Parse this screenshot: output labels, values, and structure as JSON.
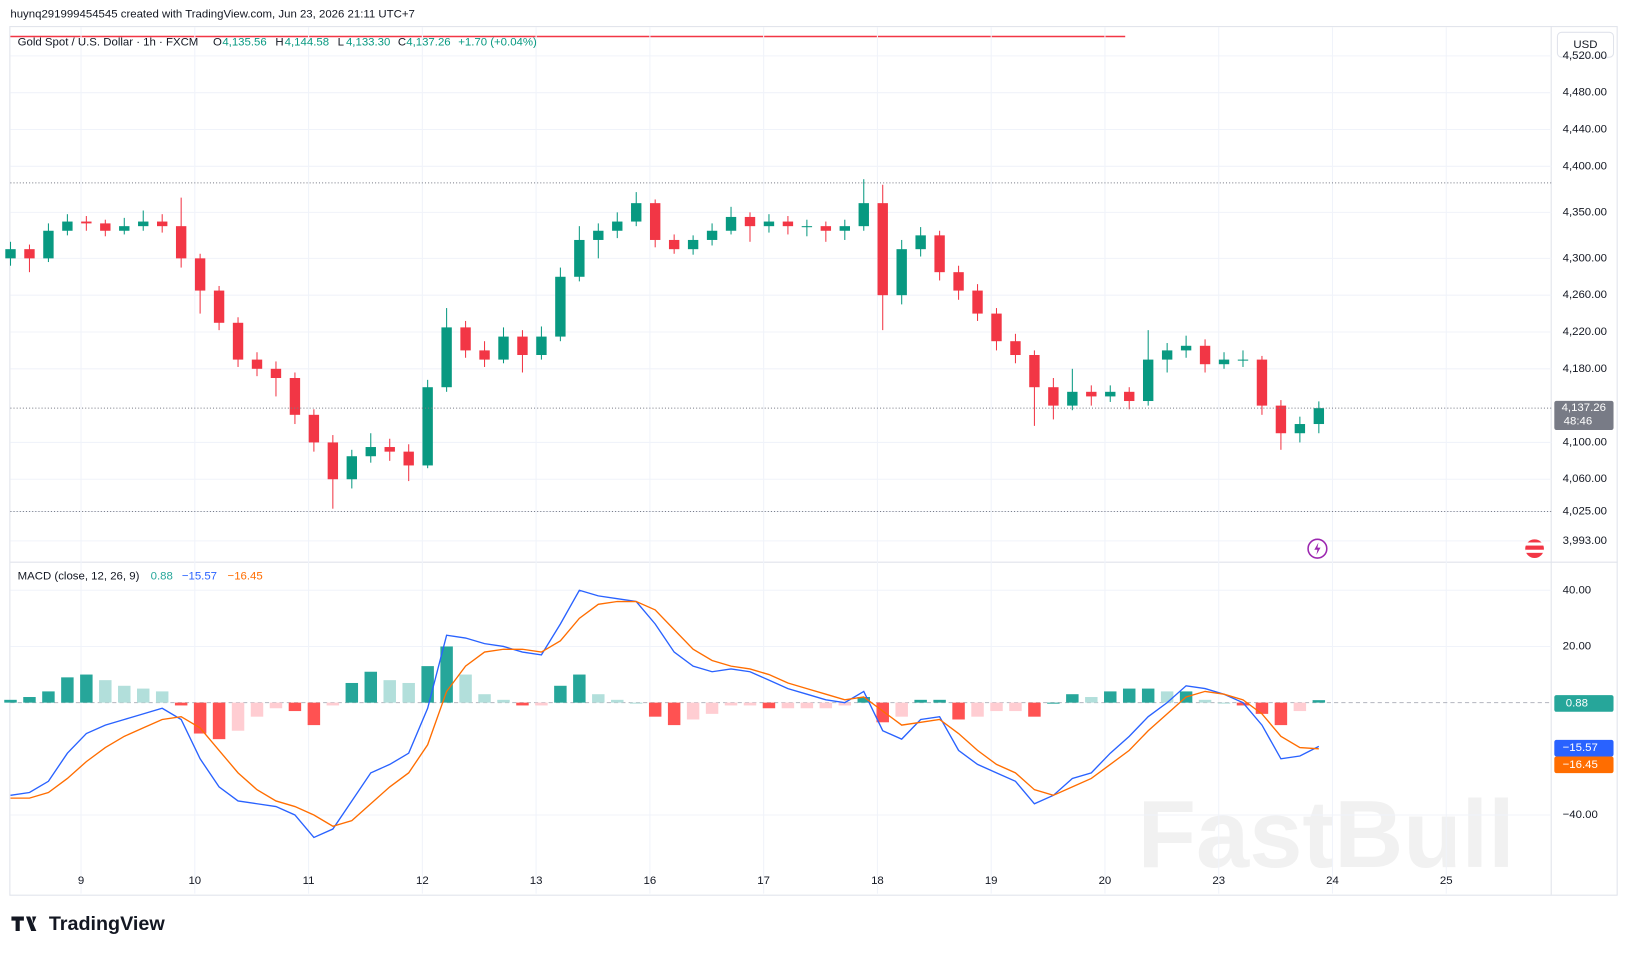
{
  "header": {
    "byline": "huynq291999454545 created with TradingView.com, Jun 23, 2026 21:11 UTC+7",
    "currency": "USD",
    "logo": "TradingView",
    "watermark": "FastBull"
  },
  "legend": {
    "symbol": "Gold Spot / U.S. Dollar · 1h · FXCM",
    "o_key": "O",
    "open": "4,135.56",
    "h_key": "H",
    "high": "4,144.58",
    "l_key": "L",
    "low": "4,133.30",
    "c_key": "C",
    "close": "4,137.26",
    "change": "+1.70 (+0.04%)",
    "countdown": "48:46"
  },
  "chart_data": [
    {
      "type": "candlestick",
      "up_color": "#089981",
      "down_color": "#f23645",
      "categories": [
        "9",
        "10",
        "11",
        "12",
        "13",
        "16",
        "17",
        "18",
        "19",
        "20",
        "23",
        "24",
        "25"
      ],
      "ylim": [
        3971,
        4549
      ],
      "yticks": [
        {
          "value": 4520,
          "label": "4,520.00"
        },
        {
          "value": 4480,
          "label": "4,480.00"
        },
        {
          "value": 4440,
          "label": "4,440.00"
        },
        {
          "value": 4400,
          "label": "4,400.00"
        },
        {
          "value": 4350,
          "label": "4,350.00"
        },
        {
          "value": 4300,
          "label": "4,300.00"
        },
        {
          "value": 4260,
          "label": "4,260.00"
        },
        {
          "value": 4220,
          "label": "4,220.00"
        },
        {
          "value": 4180,
          "label": "4,180.00"
        },
        {
          "value": 4100,
          "label": "4,100.00"
        },
        {
          "value": 4060,
          "label": "4,060.00"
        },
        {
          "value": 4025,
          "label": "4,025.00"
        },
        {
          "value": 3993,
          "label": "3,993.00"
        }
      ],
      "horizontal_lines": [
        4382,
        4025
      ],
      "grid": true,
      "candles": [
        [
          4300,
          4318,
          4292,
          4310
        ],
        [
          4310,
          4315,
          4285,
          4300
        ],
        [
          4300,
          4338,
          4296,
          4330
        ],
        [
          4330,
          4348,
          4325,
          4340
        ],
        [
          4340,
          4346,
          4330,
          4338
        ],
        [
          4338,
          4342,
          4324,
          4330
        ],
        [
          4330,
          4344,
          4326,
          4335
        ],
        [
          4335,
          4352,
          4330,
          4340
        ],
        [
          4340,
          4348,
          4328,
          4335
        ],
        [
          4335,
          4366,
          4290,
          4300
        ],
        [
          4300,
          4305,
          4240,
          4265
        ],
        [
          4265,
          4270,
          4222,
          4230
        ],
        [
          4230,
          4236,
          4182,
          4190
        ],
        [
          4190,
          4198,
          4172,
          4180
        ],
        [
          4180,
          4188,
          4150,
          4170
        ],
        [
          4170,
          4176,
          4120,
          4130
        ],
        [
          4130,
          4136,
          4090,
          4100
        ],
        [
          4100,
          4108,
          4028,
          4060
        ],
        [
          4060,
          4092,
          4050,
          4085
        ],
        [
          4085,
          4110,
          4078,
          4095
        ],
        [
          4095,
          4104,
          4080,
          4090
        ],
        [
          4090,
          4098,
          4058,
          4075
        ],
        [
          4075,
          4168,
          4072,
          4160
        ],
        [
          4160,
          4246,
          4155,
          4225
        ],
        [
          4225,
          4232,
          4192,
          4200
        ],
        [
          4200,
          4210,
          4182,
          4190
        ],
        [
          4190,
          4225,
          4186,
          4215
        ],
        [
          4215,
          4222,
          4176,
          4195
        ],
        [
          4195,
          4226,
          4190,
          4215
        ],
        [
          4215,
          4290,
          4210,
          4280
        ],
        [
          4280,
          4335,
          4275,
          4320
        ],
        [
          4320,
          4338,
          4300,
          4330
        ],
        [
          4330,
          4350,
          4322,
          4340
        ],
        [
          4340,
          4372,
          4335,
          4360
        ],
        [
          4360,
          4364,
          4312,
          4320
        ],
        [
          4320,
          4326,
          4305,
          4310
        ],
        [
          4310,
          4325,
          4304,
          4320
        ],
        [
          4320,
          4338,
          4314,
          4330
        ],
        [
          4330,
          4356,
          4326,
          4345
        ],
        [
          4345,
          4350,
          4318,
          4335
        ],
        [
          4335,
          4348,
          4328,
          4340
        ],
        [
          4340,
          4346,
          4326,
          4335
        ],
        [
          4335,
          4342,
          4324,
          4335
        ],
        [
          4335,
          4340,
          4318,
          4330
        ],
        [
          4330,
          4342,
          4320,
          4335
        ],
        [
          4335,
          4386,
          4330,
          4360
        ],
        [
          4360,
          4380,
          4222,
          4260
        ],
        [
          4260,
          4320,
          4250,
          4310
        ],
        [
          4310,
          4334,
          4302,
          4325
        ],
        [
          4325,
          4330,
          4276,
          4285
        ],
        [
          4285,
          4292,
          4255,
          4265
        ],
        [
          4265,
          4272,
          4232,
          4240
        ],
        [
          4240,
          4246,
          4200,
          4210
        ],
        [
          4210,
          4218,
          4186,
          4195
        ],
        [
          4195,
          4200,
          4118,
          4160
        ],
        [
          4160,
          4170,
          4125,
          4140
        ],
        [
          4140,
          4180,
          4135,
          4155
        ],
        [
          4155,
          4162,
          4140,
          4150
        ],
        [
          4150,
          4162,
          4144,
          4155
        ],
        [
          4155,
          4160,
          4136,
          4145
        ],
        [
          4145,
          4222,
          4140,
          4190
        ],
        [
          4190,
          4208,
          4176,
          4200
        ],
        [
          4200,
          4216,
          4192,
          4205
        ],
        [
          4205,
          4212,
          4176,
          4185
        ],
        [
          4185,
          4198,
          4180,
          4190
        ],
        [
          4190,
          4200,
          4182,
          4190
        ],
        [
          4190,
          4194,
          4130,
          4140
        ],
        [
          4140,
          4146,
          4092,
          4110
        ],
        [
          4110,
          4128,
          4100,
          4120
        ],
        [
          4120,
          4144.58,
          4110,
          4137.26
        ]
      ]
    },
    {
      "type": "macd",
      "title": "MACD (close, 12, 26, 9)",
      "ylim": [
        -68,
        50
      ],
      "yticks": [
        {
          "value": 40,
          "label": "40.00"
        },
        {
          "value": 20,
          "label": "20.00"
        },
        {
          "value": -40,
          "label": "−40.00"
        }
      ],
      "histogram": {
        "colors": [
          "#26a69a",
          "#b2dfdb",
          "#ff5252",
          "#ffcdd2"
        ],
        "values": [
          1,
          2,
          4,
          9,
          10,
          8,
          6,
          5,
          4,
          -1,
          -11,
          -13,
          -10,
          -5,
          -2,
          -3,
          -8,
          -1,
          7,
          11,
          8,
          7,
          13,
          20,
          10,
          3,
          1,
          -1,
          -1,
          6,
          10,
          3,
          1,
          0,
          -5,
          -8,
          -6,
          -4,
          -1,
          -1,
          -2,
          -2,
          -2,
          -2,
          -1,
          2,
          -7,
          -5,
          1,
          1,
          -6,
          -5,
          -3,
          -3,
          -5,
          0,
          3,
          2,
          4,
          5,
          5,
          4,
          4,
          1,
          0,
          -1,
          -4,
          -8,
          -3,
          0.88
        ]
      },
      "series": [
        {
          "color": "#2962ff",
          "last_label": "−15.57",
          "values": [
            -33,
            -32,
            -28,
            -18,
            -11,
            -8,
            -6,
            -4,
            -2,
            -6,
            -20,
            -30,
            -35,
            -36,
            -37,
            -40,
            -48,
            -45,
            -35,
            -25,
            -22,
            -18,
            -2,
            24,
            23,
            21,
            20,
            18,
            17,
            28,
            40,
            38,
            37,
            36,
            28,
            18,
            13,
            11,
            12,
            11,
            8,
            5,
            3,
            1,
            0,
            4,
            -10,
            -13,
            -6,
            -5,
            -17,
            -22,
            -25,
            -28,
            -36,
            -33,
            -27,
            -25,
            -18,
            -12,
            -5,
            0,
            6,
            5,
            3,
            0,
            -8,
            -20,
            -19,
            -15.57
          ]
        },
        {
          "color": "#ff6d00",
          "last_label": "−16.45",
          "values": [
            -34,
            -34,
            -32,
            -27,
            -21,
            -16,
            -12,
            -9,
            -6,
            -5,
            -9,
            -17,
            -25,
            -31,
            -35,
            -37,
            -40,
            -44,
            -42,
            -36,
            -30,
            -25,
            -15,
            4,
            13,
            18,
            19,
            19,
            18,
            22,
            30,
            35,
            36,
            36,
            33,
            26,
            19,
            15,
            13,
            12,
            10,
            7,
            5,
            3,
            1,
            2,
            -3,
            -8,
            -7,
            -6,
            -11,
            -17,
            -22,
            -25,
            -31,
            -33,
            -30,
            -27,
            -22,
            -17,
            -10,
            -4,
            2,
            4,
            3,
            1,
            -4,
            -12,
            -16,
            -16.45
          ]
        }
      ]
    }
  ]
}
